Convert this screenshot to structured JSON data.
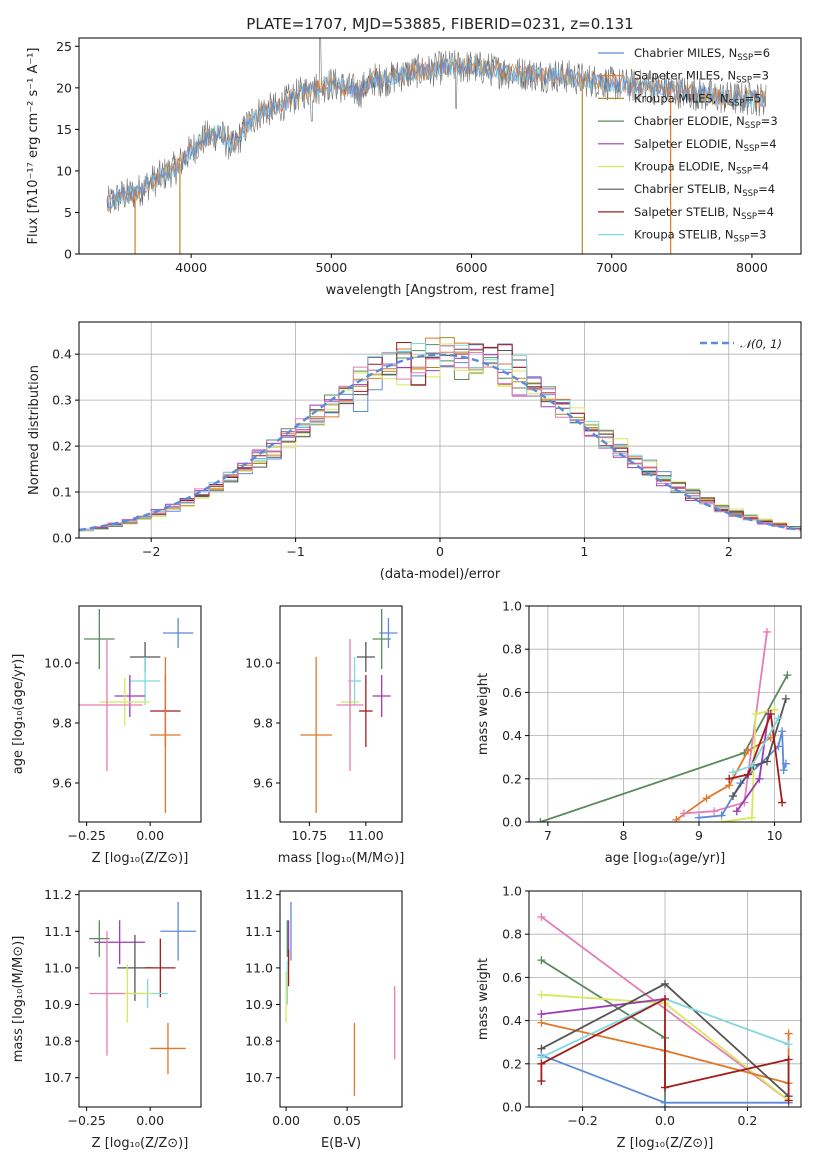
{
  "title": "PLATE=1707, MJD=53885, FIBERID=0231, z=0.131",
  "colors": {
    "Chabrier MILES": "#5b8bd8",
    "Salpeter MILES": "#e0782b",
    "Kroupa MILES": "#b08a2a",
    "Chabrier ELODIE": "#5a8a5a",
    "Salpeter ELODIE": "#9b3cb5",
    "Kroupa ELODIE": "#d8e85c",
    "Chabrier STELIB": "#555555",
    "Salpeter STELIB": "#a31c1c",
    "Kroupa STELIB": "#80d8e0",
    "pink": "#e37fb8",
    "normal": "#5b8bd8"
  },
  "chart_data": [
    {
      "id": "spectrum",
      "type": "line",
      "xlabel": "wavelength [Angstrom, rest frame]",
      "ylabel": "Flux [fλ10⁻¹⁷ erg cm⁻² s⁻¹ A⁻¹]",
      "xlim": [
        3200,
        8350
      ],
      "ylim": [
        0,
        26
      ],
      "xticks": [
        4000,
        5000,
        6000,
        7000,
        8000
      ],
      "yticks": [
        0,
        5,
        10,
        15,
        20,
        25
      ],
      "legend_position": "top-right",
      "continuum": [
        [
          3400,
          6
        ],
        [
          3500,
          7
        ],
        [
          3600,
          7.3
        ],
        [
          3700,
          8.5
        ],
        [
          3800,
          9.5
        ],
        [
          3900,
          10.5
        ],
        [
          4000,
          12.5
        ],
        [
          4100,
          14
        ],
        [
          4200,
          14.5
        ],
        [
          4300,
          12.8
        ],
        [
          4400,
          15.5
        ],
        [
          4500,
          17.2
        ],
        [
          4600,
          17.5
        ],
        [
          4700,
          18.5
        ],
        [
          4800,
          19.5
        ],
        [
          4900,
          20
        ],
        [
          5000,
          20.5
        ],
        [
          5100,
          20
        ],
        [
          5200,
          19.5
        ],
        [
          5300,
          21
        ],
        [
          5400,
          21
        ],
        [
          5500,
          21.5
        ],
        [
          5600,
          22
        ],
        [
          5700,
          22
        ],
        [
          5800,
          22.5
        ],
        [
          5900,
          22.5
        ],
        [
          6000,
          22.5
        ],
        [
          6100,
          22.3
        ],
        [
          6200,
          22
        ],
        [
          6300,
          21.8
        ],
        [
          6400,
          21.7
        ],
        [
          6500,
          21.5
        ],
        [
          6600,
          21.5
        ],
        [
          6700,
          21.3
        ],
        [
          6800,
          21
        ],
        [
          6900,
          20.8
        ],
        [
          7000,
          20.5
        ],
        [
          7100,
          20.3
        ],
        [
          7200,
          20.2
        ],
        [
          7300,
          20
        ],
        [
          7400,
          19.8
        ],
        [
          7500,
          19.5
        ],
        [
          7600,
          19.3
        ],
        [
          7700,
          19
        ],
        [
          7800,
          18.8
        ],
        [
          7900,
          18.7
        ],
        [
          8000,
          18.7
        ],
        [
          8100,
          18.6
        ]
      ],
      "series": [
        {
          "name": "Chabrier MILES, N_SSP=6",
          "label": "Chabrier MILES, N",
          "sub": "SSP",
          "tail": "=6"
        },
        {
          "name": "Salpeter MILES, N_SSP=3",
          "label": "Salpeter MILES, N",
          "sub": "SSP",
          "tail": "=3"
        },
        {
          "name": "Kroupa MILES, N_SSP=5",
          "label": "Kroupa MILES, N",
          "sub": "SSP",
          "tail": "=5"
        },
        {
          "name": "Chabrier ELODIE, N_SSP=3",
          "label": "Chabrier ELODIE, N",
          "sub": "SSP",
          "tail": "=3"
        },
        {
          "name": "Salpeter ELODIE, N_SSP=4",
          "label": "Salpeter ELODIE, N",
          "sub": "SSP",
          "tail": "=4"
        },
        {
          "name": "Kroupa ELODIE, N_SSP=4",
          "label": "Kroupa ELODIE, N",
          "sub": "SSP",
          "tail": "=4"
        },
        {
          "name": "Chabrier STELIB, N_SSP=4",
          "label": "Chabrier STELIB, N",
          "sub": "SSP",
          "tail": "=4"
        },
        {
          "name": "Salpeter STELIB, N_SSP=4",
          "label": "Salpeter STELIB, N",
          "sub": "SSP",
          "tail": "=4"
        },
        {
          "name": "Kroupa STELIB, N_SSP=3",
          "label": "Kroupa STELIB, N",
          "sub": "SSP",
          "tail": "=3"
        }
      ]
    },
    {
      "id": "residuals",
      "type": "bar",
      "xlabel": "(data-model)/error",
      "ylabel": "Normed distribution",
      "xlim": [
        -2.5,
        2.5
      ],
      "ylim": [
        0,
        0.47
      ],
      "xticks": [
        -2,
        -1,
        0,
        1,
        2
      ],
      "xticklabels": [
        "−2",
        "−1",
        "0",
        "1",
        "2"
      ],
      "yticks": [
        0,
        0.1,
        0.2,
        0.3,
        0.4
      ],
      "yticklabels": [
        "0.0",
        "0.1",
        "0.2",
        "0.3",
        "0.4"
      ],
      "grid": true,
      "legend": "𝒩(0, 1)",
      "legend_position": "top-right",
      "bin_width": 0.1
    },
    {
      "id": "age-vs-Z",
      "type": "scatter",
      "xlabel": "Z [log₁₀(Z/Z⊙)]",
      "ylabel": "age  [log₁₀(age/yr)]",
      "xlim": [
        -0.28,
        0.2
      ],
      "ylim": [
        9.47,
        10.19
      ],
      "xticks": [
        -0.25,
        0.0
      ],
      "xticklabels": [
        "−0.25",
        "0.00"
      ],
      "yticks": [
        9.6,
        9.8,
        10.0
      ],
      "yticklabels": [
        "9.6",
        "9.8",
        "10.0"
      ],
      "points": [
        {
          "c": "Chabrier ELODIE",
          "x": -0.2,
          "xe": 0.06,
          "y": 10.08,
          "ye": 0.1
        },
        {
          "c": "Chabrier STELIB",
          "x": -0.02,
          "xe": 0.06,
          "y": 10.02,
          "ye": 0.05
        },
        {
          "c": "Chabrier MILES",
          "x": 0.11,
          "xe": 0.06,
          "y": 10.1,
          "ye": 0.05
        },
        {
          "c": "Kroupa STELIB",
          "x": -0.02,
          "xe": 0.06,
          "y": 9.94,
          "ye": 0.08
        },
        {
          "c": "Salpeter ELODIE",
          "x": -0.08,
          "xe": 0.06,
          "y": 9.89,
          "ye": 0.07
        },
        {
          "c": "Kroupa ELODIE",
          "x": -0.1,
          "xe": 0.1,
          "y": 9.87,
          "ye": 0.08
        },
        {
          "c": "pink",
          "x": -0.17,
          "xe": 0.14,
          "y": 9.86,
          "ye": 0.22
        },
        {
          "c": "Salpeter STELIB",
          "x": 0.06,
          "xe": 0.06,
          "y": 9.84,
          "ye": 0.12
        },
        {
          "c": "Salpeter MILES",
          "x": 0.06,
          "xe": 0.06,
          "y": 9.76,
          "ye": 0.26
        }
      ]
    },
    {
      "id": "age-vs-mass",
      "type": "scatter",
      "xlabel": "mass [log₁₀(M/M⊙)]",
      "ylabel": "",
      "xlim": [
        10.62,
        11.16
      ],
      "ylim": [
        9.47,
        10.19
      ],
      "xticks": [
        10.75,
        11.0
      ],
      "xticklabels": [
        "10.75",
        "11.00"
      ],
      "yticks": [
        9.6,
        9.8,
        10.0
      ],
      "yticklabels": [
        "9.6",
        "9.8",
        "10.0"
      ],
      "points": [
        {
          "c": "Chabrier ELODIE",
          "x": 11.07,
          "xe": 0.04,
          "y": 10.08,
          "ye": 0.1
        },
        {
          "c": "Chabrier STELIB",
          "x": 11.0,
          "xe": 0.04,
          "y": 10.02,
          "ye": 0.05
        },
        {
          "c": "Chabrier MILES",
          "x": 11.1,
          "xe": 0.04,
          "y": 10.1,
          "ye": 0.05
        },
        {
          "c": "Kroupa STELIB",
          "x": 10.95,
          "xe": 0.03,
          "y": 9.94,
          "ye": 0.08
        },
        {
          "c": "Salpeter ELODIE",
          "x": 11.07,
          "xe": 0.04,
          "y": 9.89,
          "ye": 0.07
        },
        {
          "c": "Kroupa ELODIE",
          "x": 10.93,
          "xe": 0.04,
          "y": 9.87,
          "ye": 0.08
        },
        {
          "c": "pink",
          "x": 10.93,
          "xe": 0.06,
          "y": 9.86,
          "ye": 0.22
        },
        {
          "c": "Salpeter STELIB",
          "x": 11.0,
          "xe": 0.03,
          "y": 9.84,
          "ye": 0.12
        },
        {
          "c": "Salpeter MILES",
          "x": 10.78,
          "xe": 0.07,
          "y": 9.76,
          "ye": 0.26
        }
      ]
    },
    {
      "id": "weight-vs-age",
      "type": "line",
      "xlabel": "age  [log₁₀(age/yr)]",
      "ylabel": "mass weight",
      "xlim": [
        6.75,
        10.35
      ],
      "ylim": [
        0,
        1.0
      ],
      "xticks": [
        7,
        8,
        9,
        10
      ],
      "xticklabels": [
        "7",
        "8",
        "9",
        "10"
      ],
      "yticks": [
        0,
        0.2,
        0.4,
        0.6,
        0.8,
        1.0
      ],
      "yticklabels": [
        "0.0",
        "0.2",
        "0.4",
        "0.6",
        "0.8",
        "1.0"
      ],
      "grid": true,
      "series": [
        {
          "c": "Chabrier ELODIE",
          "x": [
            6.9,
            9.6,
            10.17
          ],
          "y": [
            0.0,
            0.32,
            0.68
          ]
        },
        {
          "c": "Salpeter MILES",
          "x": [
            8.7,
            9.1,
            9.4,
            9.65,
            9.95
          ],
          "y": [
            0.01,
            0.11,
            0.17,
            0.33,
            0.39
          ]
        },
        {
          "c": "pink",
          "x": [
            8.8,
            9.2,
            9.6,
            9.9
          ],
          "y": [
            0.04,
            0.05,
            0.09,
            0.88
          ]
        },
        {
          "c": "Chabrier MILES",
          "x": [
            9.0,
            9.3,
            9.55,
            10.05,
            10.1,
            10.12,
            10.15
          ],
          "y": [
            0.02,
            0.03,
            0.18,
            0.35,
            0.42,
            0.24,
            0.27
          ]
        },
        {
          "c": "Kroupa ELODIE",
          "x": [
            9.3,
            9.7,
            9.75,
            10.0
          ],
          "y": [
            0.0,
            0.02,
            0.5,
            0.52
          ]
        },
        {
          "c": "Salpeter ELODIE",
          "x": [
            9.5,
            9.8,
            9.92
          ],
          "y": [
            0.05,
            0.2,
            0.5
          ]
        },
        {
          "c": "Chabrier STELIB",
          "x": [
            9.45,
            9.72,
            9.9,
            10.15
          ],
          "y": [
            0.12,
            0.26,
            0.28,
            0.57
          ]
        },
        {
          "c": "Salpeter STELIB",
          "x": [
            9.4,
            9.65,
            9.95,
            10.1
          ],
          "y": [
            0.2,
            0.22,
            0.5,
            0.09
          ]
        },
        {
          "c": "Kroupa STELIB",
          "x": [
            9.45,
            9.7,
            10.05
          ],
          "y": [
            0.23,
            0.26,
            0.48
          ]
        }
      ]
    },
    {
      "id": "mass-vs-Z",
      "type": "scatter",
      "xlabel": "Z [log₁₀(Z/Z⊙)]",
      "ylabel": "mass [log₁₀(M/M⊙)]",
      "xlim": [
        -0.28,
        0.2
      ],
      "ylim": [
        10.62,
        11.21
      ],
      "xticks": [
        -0.25,
        0.0
      ],
      "xticklabels": [
        "−0.25",
        "0.00"
      ],
      "yticks": [
        10.7,
        10.8,
        10.9,
        11.0,
        11.1,
        11.2
      ],
      "yticklabels": [
        "10.7",
        "10.8",
        "10.9",
        "11.0",
        "11.1",
        "11.2"
      ],
      "points": [
        {
          "c": "Chabrier ELODIE",
          "x": -0.2,
          "xe": 0.04,
          "y": 11.08,
          "ye": 0.05
        },
        {
          "c": "Chabrier MILES",
          "x": 0.11,
          "xe": 0.07,
          "y": 11.1,
          "ye": 0.08
        },
        {
          "c": "Salpeter ELODIE",
          "x": -0.12,
          "xe": 0.1,
          "y": 11.07,
          "ye": 0.06
        },
        {
          "c": "Chabrier STELIB",
          "x": -0.06,
          "xe": 0.07,
          "y": 11.0,
          "ye": 0.09
        },
        {
          "c": "Salpeter STELIB",
          "x": 0.04,
          "xe": 0.06,
          "y": 11.0,
          "ye": 0.08
        },
        {
          "c": "Kroupa STELIB",
          "x": -0.01,
          "xe": 0.08,
          "y": 10.93,
          "ye": 0.04
        },
        {
          "c": "Kroupa ELODIE",
          "x": -0.09,
          "xe": 0.1,
          "y": 10.93,
          "ye": 0.08
        },
        {
          "c": "pink",
          "x": -0.17,
          "xe": 0.07,
          "y": 10.93,
          "ye": 0.17
        },
        {
          "c": "Salpeter MILES",
          "x": 0.07,
          "xe": 0.07,
          "y": 10.78,
          "ye": 0.07
        }
      ]
    },
    {
      "id": "mass-vs-EBV",
      "type": "scatter",
      "xlabel": "E(B-V)",
      "ylabel": "",
      "xlim": [
        -0.005,
        0.095
      ],
      "ylim": [
        10.62,
        11.21
      ],
      "xticks": [
        0.0,
        0.05
      ],
      "xticklabels": [
        "0.00",
        "0.05"
      ],
      "yticks": [
        10.7,
        10.8,
        10.9,
        11.0,
        11.1,
        11.2
      ],
      "yticklabels": [
        "10.7",
        "10.8",
        "10.9",
        "11.0",
        "11.1",
        "11.2"
      ],
      "points": [
        {
          "c": "Chabrier MILES",
          "x": 0.004,
          "xe": 0,
          "y": 11.1,
          "ye": 0.08
        },
        {
          "c": "Chabrier ELODIE",
          "x": 0.001,
          "xe": 0,
          "y": 11.08,
          "ye": 0.05
        },
        {
          "c": "Salpeter ELODIE",
          "x": 0.002,
          "xe": 0,
          "y": 11.07,
          "ye": 0.06
        },
        {
          "c": "Salpeter STELIB",
          "x": 0.002,
          "xe": 0,
          "y": 11.0,
          "ye": 0.05
        },
        {
          "c": "Kroupa STELIB",
          "x": 0.001,
          "xe": 0,
          "y": 10.96,
          "ye": 0.06
        },
        {
          "c": "Kroupa ELODIE",
          "x": 0.0,
          "xe": 0,
          "y": 10.92,
          "ye": 0.07
        },
        {
          "c": "Salpeter MILES",
          "x": 0.056,
          "xe": 0,
          "y": 10.75,
          "ye": 0.1
        },
        {
          "c": "pink",
          "x": 0.089,
          "xe": 0,
          "y": 10.85,
          "ye": 0.1
        }
      ]
    },
    {
      "id": "weight-vs-Z",
      "type": "line",
      "xlabel": "Z [log₁₀(Z/Z⊙)]",
      "ylabel": "mass weight",
      "xlim": [
        -0.33,
        0.33
      ],
      "ylim": [
        0,
        1.0
      ],
      "xticks": [
        -0.2,
        0.0,
        0.2
      ],
      "xticklabels": [
        "−0.2",
        "0.0",
        "0.2"
      ],
      "yticks": [
        0,
        0.2,
        0.4,
        0.6,
        0.8,
        1.0
      ],
      "yticklabels": [
        "0.0",
        "0.2",
        "0.4",
        "0.6",
        "0.8",
        "1.0"
      ],
      "grid": true,
      "series": [
        {
          "c": "pink",
          "x": [
            -0.3,
            0.3
          ],
          "y": [
            0.88,
            0.03
          ]
        },
        {
          "c": "Chabrier ELODIE",
          "x": [
            -0.3,
            0.0,
            0.0
          ],
          "y": [
            0.68,
            0.32,
            0.0
          ]
        },
        {
          "c": "Kroupa ELODIE",
          "x": [
            -0.3,
            0.0,
            0.3
          ],
          "y": [
            0.52,
            0.48,
            0.03
          ]
        },
        {
          "c": "Salpeter ELODIE",
          "x": [
            -0.3,
            0.0
          ],
          "y": [
            0.43,
            0.5
          ]
        },
        {
          "c": "Salpeter MILES",
          "x": [
            -0.3,
            0.0,
            0.3,
            0.3
          ],
          "y": [
            0.39,
            0.26,
            0.11,
            0.34
          ]
        },
        {
          "c": "Chabrier STELIB",
          "x": [
            -0.3,
            0.0,
            0.3
          ],
          "y": [
            0.27,
            0.57,
            0.05
          ]
        },
        {
          "c": "Chabrier MILES",
          "x": [
            -0.3,
            0.0,
            0.3
          ],
          "y": [
            0.24,
            0.02,
            0.02
          ]
        },
        {
          "c": "Kroupa STELIB",
          "x": [
            -0.3,
            0.0,
            0.3
          ],
          "y": [
            0.23,
            0.5,
            0.29
          ]
        },
        {
          "c": "Salpeter STELIB",
          "x": [
            -0.3,
            -0.3,
            0.0,
            0.0,
            0.3,
            0.3
          ],
          "y": [
            0.12,
            0.2,
            0.5,
            0.09,
            0.22,
            0.03
          ]
        }
      ]
    }
  ]
}
